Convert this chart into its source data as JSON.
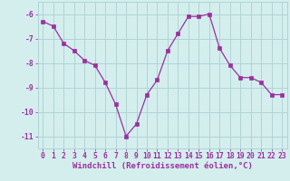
{
  "x": [
    0,
    1,
    2,
    3,
    4,
    5,
    6,
    7,
    8,
    9,
    10,
    11,
    12,
    13,
    14,
    15,
    16,
    17,
    18,
    19,
    20,
    21,
    22,
    23
  ],
  "y": [
    -6.3,
    -6.5,
    -7.2,
    -7.5,
    -7.9,
    -8.1,
    -8.8,
    -9.7,
    -11.0,
    -10.5,
    -9.3,
    -8.7,
    -7.5,
    -6.8,
    -6.1,
    -6.1,
    -6.0,
    -7.4,
    -8.1,
    -8.6,
    -8.6,
    -8.8,
    -9.3,
    -9.3
  ],
  "line_color": "#9B30A0",
  "marker": "s",
  "marker_size": 2.2,
  "bg_color": "#d4eeee",
  "grid_color": "#b0d4d4",
  "xlabel": "Windchill (Refroidissement éolien,°C)",
  "xlim": [
    -0.5,
    23.5
  ],
  "ylim": [
    -11.5,
    -5.5
  ],
  "yticks": [
    -6,
    -7,
    -8,
    -9,
    -10,
    -11
  ],
  "xticks": [
    0,
    1,
    2,
    3,
    4,
    5,
    6,
    7,
    8,
    9,
    10,
    11,
    12,
    13,
    14,
    15,
    16,
    17,
    18,
    19,
    20,
    21,
    22,
    23
  ],
  "tick_fontsize": 5.8,
  "xlabel_fontsize": 6.5,
  "line_width": 0.9
}
